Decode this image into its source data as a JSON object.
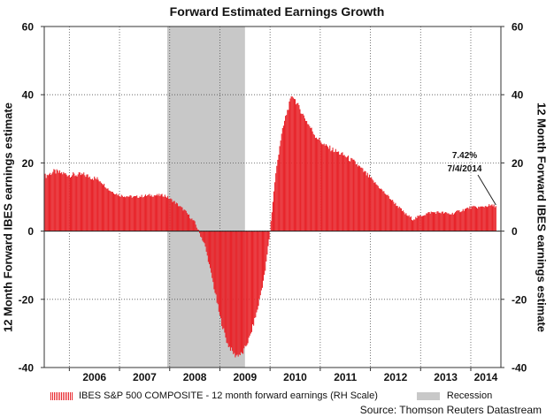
{
  "chart_data": {
    "type": "bar",
    "title": "Forward Estimated Earnings Growth",
    "ylabel_left": "12 Month Forward IBES earnings estimate",
    "ylabel_right": "12 Month Forward IBES earnings estimate",
    "ylim": [
      -40,
      60
    ],
    "yticks": [
      "60",
      "40",
      "20",
      "0",
      "-20",
      "-40"
    ],
    "xlim": [
      2005.5,
      2014.6
    ],
    "x_tick_labels": [
      "2006",
      "2007",
      "2008",
      "2009",
      "2010",
      "2011",
      "2012",
      "2013",
      "2014"
    ],
    "grid": true,
    "recession": {
      "start": 2007.95,
      "end": 2009.5,
      "label": "Recession"
    },
    "series": [
      {
        "name": "IBES S&P 500 COMPOSITE - 12 month forward earnings (RH Scale)",
        "color": "#e8252b",
        "points": [
          [
            2005.5,
            16
          ],
          [
            2005.7,
            17.5
          ],
          [
            2006.0,
            16.5
          ],
          [
            2006.3,
            16.5
          ],
          [
            2006.6,
            15
          ],
          [
            2006.8,
            12
          ],
          [
            2007.0,
            10.5
          ],
          [
            2007.3,
            10
          ],
          [
            2007.6,
            10.5
          ],
          [
            2007.9,
            10.5
          ],
          [
            2008.1,
            8.5
          ],
          [
            2008.3,
            6
          ],
          [
            2008.5,
            2.5
          ],
          [
            2008.7,
            -4
          ],
          [
            2008.85,
            -14
          ],
          [
            2009.0,
            -25
          ],
          [
            2009.15,
            -33
          ],
          [
            2009.3,
            -36.5
          ],
          [
            2009.45,
            -36
          ],
          [
            2009.6,
            -31
          ],
          [
            2009.75,
            -23
          ],
          [
            2009.9,
            -12
          ],
          [
            2010.0,
            0
          ],
          [
            2010.1,
            15
          ],
          [
            2010.2,
            26
          ],
          [
            2010.3,
            33
          ],
          [
            2010.4,
            38
          ],
          [
            2010.45,
            40
          ],
          [
            2010.55,
            37
          ],
          [
            2010.7,
            33
          ],
          [
            2010.9,
            28
          ],
          [
            2011.1,
            25
          ],
          [
            2011.3,
            23.5
          ],
          [
            2011.5,
            22
          ],
          [
            2011.7,
            20
          ],
          [
            2011.9,
            17
          ],
          [
            2012.1,
            14
          ],
          [
            2012.3,
            11
          ],
          [
            2012.5,
            8
          ],
          [
            2012.7,
            5
          ],
          [
            2012.85,
            3.5
          ],
          [
            2013.0,
            4.5
          ],
          [
            2013.2,
            5.5
          ],
          [
            2013.4,
            5.5
          ],
          [
            2013.6,
            5
          ],
          [
            2013.8,
            6
          ],
          [
            2014.0,
            7
          ],
          [
            2014.2,
            7
          ],
          [
            2014.35,
            7.5
          ],
          [
            2014.5,
            7.42
          ]
        ]
      }
    ],
    "annotation": {
      "value": "7.42%",
      "date": "7/4/2014",
      "x": 2014.5,
      "y": 7.42
    }
  },
  "legend": {
    "series_label": "IBES S&P 500 COMPOSITE - 12 month forward earnings (RH Scale)",
    "recession_label": "Recession"
  },
  "source": "Source: Thomson Reuters Datastream"
}
